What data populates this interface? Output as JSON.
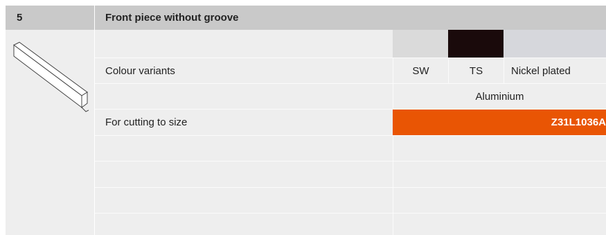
{
  "header": {
    "number": "5",
    "title": "Front piece without groove"
  },
  "table": {
    "rows": [
      [
        "",
        ""
      ],
      [
        "Colour variants",
        "SW",
        "TS",
        "Nickel plated"
      ],
      [
        "",
        "Aluminium"
      ],
      [
        "For cutting to size",
        "Z31L1036A"
      ]
    ]
  }
}
